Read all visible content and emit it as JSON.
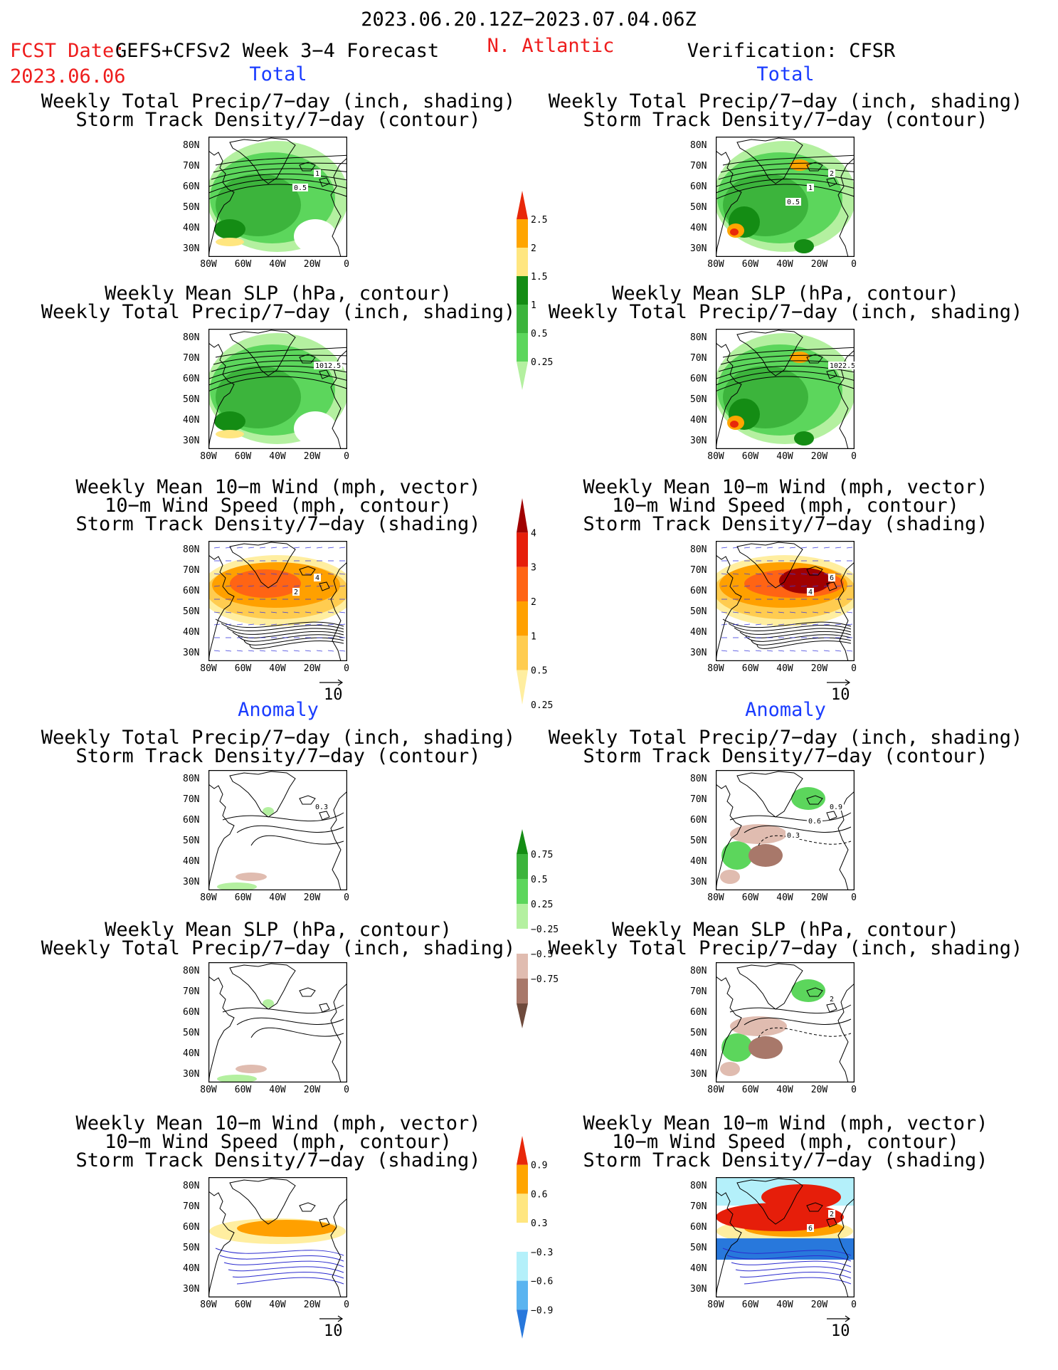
{
  "header": {
    "period": "2023.06.20.12Z−2023.07.04.06Z",
    "fcst_date_label": "FCST Date:",
    "fcst_date": "2023.06.06",
    "forecast_name": "GEFS+CFSv2 Week 3−4 Forecast",
    "region": "N. Atlantic",
    "verification": "Verification: CFSR"
  },
  "section_labels": {
    "total": "Total",
    "anomaly": "Anomaly"
  },
  "panel_titles": {
    "precip_track": [
      "Weekly Total Precip/7−day (inch, shading)",
      "Storm Track Density/7−day (contour)"
    ],
    "slp_precip": [
      "Weekly Mean SLP (hPa, contour)",
      "Weekly Total Precip/7−day (inch, shading)"
    ],
    "wind_track": [
      "Weekly Mean 10−m Wind (mph, vector)",
      "10−m Wind Speed (mph, contour)",
      "Storm Track Density/7−day (shading)"
    ]
  },
  "map_axes": {
    "lat_labels": [
      "80N",
      "70N",
      "60N",
      "50N",
      "40N",
      "30N"
    ],
    "lon_labels": [
      "80W",
      "60W",
      "40W",
      "20W",
      "0"
    ]
  },
  "vector_ref_label": "10",
  "colors": {
    "green_1": "#b4f0a0",
    "green_2": "#5cd65c",
    "green_3": "#3cb43c",
    "green_4": "#148c14",
    "yellow": "#ffe680",
    "orange": "#ffa500",
    "red": "#e8280a",
    "track_1": "#ffeea0",
    "track_2": "#ffcc50",
    "track_3": "#ffa000",
    "track_4": "#ff6414",
    "track_5": "#e61e0a",
    "track_6": "#a00000",
    "brown_1": "#e0bcb0",
    "brown_2": "#a8786a",
    "brown_3": "#6e4a3c",
    "blue_1": "#b4f0fa",
    "blue_2": "#5ab4f0",
    "blue_3": "#2878dc",
    "title_blue": "#1a3cff",
    "title_red": "#ee1c1c"
  },
  "chart_data": [
    {
      "type": "colorbar",
      "field": "total_precip_and_track_density_total",
      "labels": [
        "2.5",
        "2",
        "1.5",
        "1",
        "0.5",
        "0.25"
      ],
      "colors": [
        "#e8280a",
        "#ffa500",
        "#ffe680",
        "#148c14",
        "#3cb43c",
        "#5cd65c",
        "#b4f0a0"
      ]
    },
    {
      "type": "colorbar",
      "field": "storm_track_density_total",
      "labels": [
        "4",
        "3",
        "2",
        "1",
        "0.5",
        "0.25"
      ],
      "colors": [
        "#a00000",
        "#e61e0a",
        "#ff6414",
        "#ffa000",
        "#ffcc50",
        "#ffeea0"
      ]
    },
    {
      "type": "colorbar",
      "field": "precip_anomaly",
      "labels": [
        "0.75",
        "0.5",
        "0.25",
        "−0.25",
        "−0.5",
        "−0.75"
      ],
      "colors": [
        "#148c14",
        "#3cb43c",
        "#5cd65c",
        "#b4f0a0",
        "#ffffff",
        "#e0bcb0",
        "#a8786a",
        "#6e4a3c"
      ]
    },
    {
      "type": "colorbar",
      "field": "storm_track_density_anomaly",
      "labels": [
        "0.9",
        "0.6",
        "0.3",
        "−0.3",
        "−0.6",
        "−0.9"
      ],
      "colors": [
        "#e8280a",
        "#ffa500",
        "#ffe680",
        "#ffffff",
        "#b4f0fa",
        "#5ab4f0",
        "#2878dc"
      ]
    },
    {
      "type": "heatmap",
      "panel": "forecast_total_precip_track",
      "contour_labels": [
        "1",
        "0.5"
      ],
      "x": [
        "80W",
        "60W",
        "40W",
        "20W",
        "0"
      ],
      "y": [
        "80N",
        "70N",
        "60N",
        "50N",
        "40N",
        "30N"
      ]
    },
    {
      "type": "heatmap",
      "panel": "verification_total_precip_track",
      "contour_labels": [
        "2",
        "1",
        "0.5"
      ],
      "x": [
        "80W",
        "60W",
        "40W",
        "20W",
        "0"
      ],
      "y": [
        "80N",
        "70N",
        "60N",
        "50N",
        "40N",
        "30N"
      ]
    },
    {
      "type": "heatmap",
      "panel": "forecast_total_slp_precip",
      "contour_labels": [
        "1012.5"
      ],
      "x": [
        "80W",
        "60W",
        "40W",
        "20W",
        "0"
      ],
      "y": [
        "80N",
        "70N",
        "60N",
        "50N",
        "40N",
        "30N"
      ]
    },
    {
      "type": "heatmap",
      "panel": "verification_total_slp_precip",
      "contour_labels": [
        "1022.5"
      ],
      "x": [
        "80W",
        "60W",
        "40W",
        "20W",
        "0"
      ],
      "y": [
        "80N",
        "70N",
        "60N",
        "50N",
        "40N",
        "30N"
      ]
    },
    {
      "type": "heatmap",
      "panel": "forecast_total_wind_track",
      "contour_labels": [
        "4",
        "2"
      ],
      "x": [
        "80W",
        "60W",
        "40W",
        "20W",
        "0"
      ],
      "y": [
        "80N",
        "70N",
        "60N",
        "50N",
        "40N",
        "30N"
      ]
    },
    {
      "type": "heatmap",
      "panel": "verification_total_wind_track",
      "contour_labels": [
        "6",
        "4"
      ],
      "x": [
        "80W",
        "60W",
        "40W",
        "20W",
        "0"
      ],
      "y": [
        "80N",
        "70N",
        "60N",
        "50N",
        "40N",
        "30N"
      ]
    },
    {
      "type": "heatmap",
      "panel": "forecast_anomaly_precip_track",
      "contour_labels": [
        "0.3"
      ],
      "x": [
        "80W",
        "60W",
        "40W",
        "20W",
        "0"
      ],
      "y": [
        "80N",
        "70N",
        "60N",
        "50N",
        "40N",
        "30N"
      ]
    },
    {
      "type": "heatmap",
      "panel": "verification_anomaly_precip_track",
      "contour_labels": [
        "0.9",
        "0.6",
        "0.3"
      ],
      "x": [
        "80W",
        "60W",
        "40W",
        "20W",
        "0"
      ],
      "y": [
        "80N",
        "70N",
        "60N",
        "50N",
        "40N",
        "30N"
      ]
    },
    {
      "type": "heatmap",
      "panel": "verification_anomaly_slp_precip",
      "contour_labels": [
        "2"
      ],
      "x": [
        "80W",
        "60W",
        "40W",
        "20W",
        "0"
      ],
      "y": [
        "80N",
        "70N",
        "60N",
        "50N",
        "40N",
        "30N"
      ]
    },
    {
      "type": "heatmap",
      "panel": "verification_anomaly_wind_track",
      "contour_labels": [
        "2",
        "6"
      ],
      "x": [
        "80W",
        "60W",
        "40W",
        "20W",
        "0"
      ],
      "y": [
        "80N",
        "70N",
        "60N",
        "50N",
        "40N",
        "30N"
      ]
    }
  ]
}
